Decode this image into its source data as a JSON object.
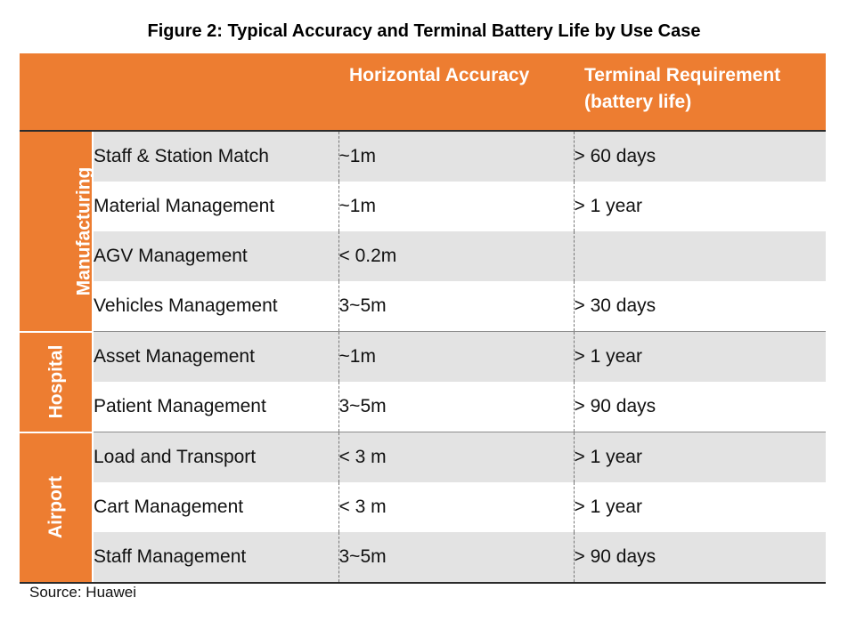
{
  "title": "Figure 2: Typical Accuracy and Terminal Battery Life by Use Case",
  "columns": {
    "accuracy": "Horizontal Accuracy",
    "terminal_line1": "Terminal Requirement",
    "terminal_line2": "(battery life)"
  },
  "groups": [
    {
      "label": "Manufacturing",
      "rows": [
        {
          "use_case": "Staff & Station Match",
          "accuracy": "~1m",
          "battery": "> 60 days"
        },
        {
          "use_case": "Material Management",
          "accuracy": "~1m",
          "battery": "> 1 year"
        },
        {
          "use_case": "AGV Management",
          "accuracy": "< 0.2m",
          "battery": ""
        },
        {
          "use_case": "Vehicles Management",
          "accuracy": "3~5m",
          "battery": "> 30 days"
        }
      ]
    },
    {
      "label": "Hospital",
      "rows": [
        {
          "use_case": "Asset Management",
          "accuracy": "~1m",
          "battery": "> 1 year"
        },
        {
          "use_case": "Patient Management",
          "accuracy": "3~5m",
          "battery": "> 90 days"
        }
      ]
    },
    {
      "label": "Airport",
      "rows": [
        {
          "use_case": "Load and Transport",
          "accuracy": "< 3 m",
          "battery": "> 1 year"
        },
        {
          "use_case": "Cart Management",
          "accuracy": "< 3 m",
          "battery": "> 1 year"
        },
        {
          "use_case": "Staff Management",
          "accuracy": "3~5m",
          "battery": "> 90 days"
        }
      ]
    }
  ],
  "source": "Source: Huawei",
  "colors": {
    "accent": "#ed7d31",
    "row_shade": "#e3e3e3"
  }
}
